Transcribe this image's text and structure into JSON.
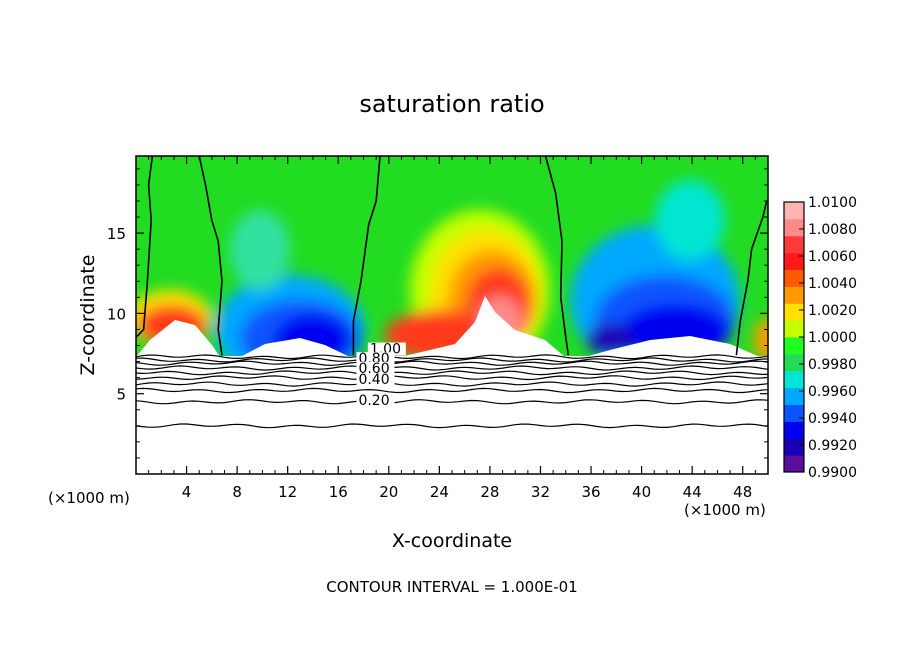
{
  "chart_data": {
    "type": "heatmap",
    "title": "saturation ratio",
    "xlabel": "X-coordinate",
    "ylabel": "Z-coordinate",
    "x_unit_left": "(×1000 m)",
    "x_unit_right": "(×1000 m)",
    "xlim": [
      0,
      50
    ],
    "ylim": [
      0,
      19.8
    ],
    "x_ticks": [
      4,
      8,
      12,
      16,
      20,
      24,
      28,
      32,
      36,
      40,
      44,
      48
    ],
    "y_ticks": [
      5,
      10,
      15
    ],
    "footer": "CONTOUR INTERVAL = 1.000E-01",
    "colorbar": {
      "levels": [
        "0.9900",
        "0.9920",
        "0.9940",
        "0.9960",
        "0.9980",
        "1.0000",
        "1.0020",
        "1.0040",
        "1.0060",
        "1.0080",
        "1.0100"
      ],
      "colors": [
        "#5a0f9a",
        "#1a00b4",
        "#0000f0",
        "#0a55ff",
        "#00a8ff",
        "#00e6d2",
        "#22dc55",
        "#20ff20",
        "#c4ff00",
        "#ffe000",
        "#ff9a00",
        "#ff5a00",
        "#ff1a1a",
        "#ff3a3a",
        "#ff8a8a",
        "#ffb4b4"
      ],
      "bottom_color": "#6a10a0"
    },
    "contour_labels": [
      {
        "text": "1.00",
        "x": 18.5,
        "z": 7.5
      },
      {
        "text": "0.80",
        "x": 17.6,
        "z": 6.9
      },
      {
        "text": "0.60",
        "x": 17.6,
        "z": 6.3
      },
      {
        "text": "0.40",
        "x": 17.6,
        "z": 5.6
      },
      {
        "text": "0.20",
        "x": 17.6,
        "z": 4.3
      }
    ],
    "contour_lines_z": [
      7.3,
      7.1,
      6.9,
      6.6,
      6.3,
      6.0,
      5.6,
      5.2,
      4.5,
      3.0
    ],
    "supersaturation_boundary": [
      [
        [
          0.0,
          8.5
        ],
        [
          0.6,
          9.0
        ],
        [
          0.9,
          12.0
        ],
        [
          1.2,
          15.8
        ],
        [
          1.0,
          18.0
        ],
        [
          1.3,
          19.8
        ]
      ],
      [
        [
          5.0,
          19.8
        ],
        [
          5.5,
          18.0
        ],
        [
          6.0,
          15.8
        ],
        [
          6.5,
          14.5
        ],
        [
          6.8,
          12.0
        ],
        [
          6.5,
          9.0
        ],
        [
          6.8,
          7.4
        ]
      ],
      [
        [
          17.2,
          7.4
        ],
        [
          17.2,
          9.5
        ],
        [
          17.8,
          12.0
        ],
        [
          18.4,
          15.5
        ],
        [
          19.0,
          17.0
        ],
        [
          19.3,
          19.8
        ]
      ],
      [
        [
          32.4,
          19.8
        ],
        [
          33.2,
          17.5
        ],
        [
          33.7,
          14.5
        ],
        [
          33.6,
          11.0
        ],
        [
          34.0,
          8.5
        ],
        [
          34.2,
          7.4
        ]
      ],
      [
        [
          47.5,
          7.4
        ],
        [
          47.8,
          9.5
        ],
        [
          48.4,
          12.0
        ],
        [
          48.7,
          14.0
        ],
        [
          49.6,
          16.0
        ],
        [
          49.9,
          17.0
        ]
      ]
    ]
  }
}
